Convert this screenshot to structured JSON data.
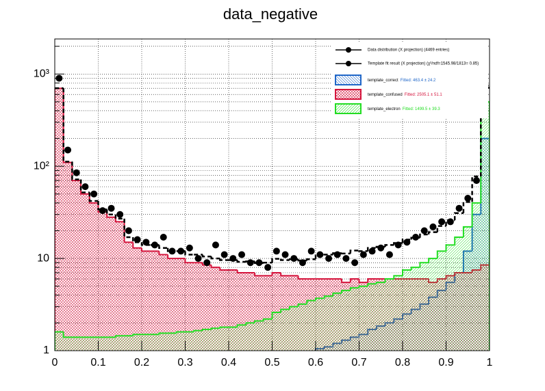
{
  "chart_data": {
    "type": "hist",
    "title": "data_negative",
    "log_y": true,
    "grid": true,
    "legend": "top-right",
    "xlim": [
      0,
      1
    ],
    "ylim": [
      1,
      2400
    ],
    "xticks": [
      0,
      0.1,
      0.2,
      0.3,
      0.4,
      0.5,
      0.6,
      0.7,
      0.8,
      0.9,
      1
    ],
    "yticks": [
      1,
      10,
      {
        "value": 100,
        "label": "10²"
      },
      {
        "value": 1000,
        "label": "10³"
      }
    ],
    "bins": [
      0,
      0.02,
      0.04,
      0.06,
      0.08,
      0.1,
      0.12,
      0.14,
      0.16,
      0.18,
      0.2,
      0.22,
      0.24,
      0.26,
      0.28,
      0.3,
      0.32,
      0.34,
      0.36,
      0.38,
      0.4,
      0.42,
      0.44,
      0.46,
      0.48,
      0.5,
      0.52,
      0.54,
      0.56,
      0.58,
      0.6,
      0.62,
      0.64,
      0.66,
      0.68,
      0.7,
      0.72,
      0.74,
      0.76,
      0.78,
      0.8,
      0.82,
      0.84,
      0.86,
      0.88,
      0.9,
      0.92,
      0.94,
      0.96,
      0.98,
      1
    ],
    "templates": [
      {
        "name": "template_correct",
        "fit_label": "Fitted: 463.4 ± 24.2",
        "color": "#1f66c8",
        "values": [
          0.3,
          0.3,
          0.3,
          0.3,
          0.3,
          0.3,
          0.3,
          0.3,
          0.3,
          0.3,
          0.3,
          0.3,
          0.3,
          0.3,
          0.3,
          0.3,
          0.3,
          0.3,
          0.3,
          0.3,
          0.3,
          0.3,
          0.3,
          0.3,
          0.3,
          0.3,
          0.3,
          0.3,
          0.3,
          0.3,
          1.05,
          1.1,
          1.2,
          1.3,
          1.4,
          1.5,
          1.7,
          1.85,
          2,
          2.2,
          2.5,
          2.8,
          3.2,
          3.8,
          4.5,
          5.5,
          7,
          12,
          30,
          200
        ]
      },
      {
        "name": "template_confused",
        "fit_label": "Fitted: 2505.1 ± 51.1",
        "color": "#d4143c",
        "values": [
          700,
          110,
          70,
          50,
          40,
          32,
          28,
          25,
          15,
          13,
          12,
          12,
          11,
          10,
          10,
          9,
          9,
          8.5,
          8,
          7.5,
          7.5,
          7,
          7,
          6.5,
          6.5,
          7,
          6.5,
          6.5,
          6,
          6,
          6,
          6,
          6,
          5.5,
          6,
          5.5,
          6,
          6,
          6,
          6,
          6,
          6,
          6,
          5.5,
          6,
          6.5,
          7,
          7,
          7.5,
          8.5
        ]
      },
      {
        "name": "template_electron",
        "fit_label": "Fitted: 1499.5 ± 39.3",
        "color": "#22dd22",
        "values": [
          1.6,
          1.4,
          1.4,
          1.4,
          1.4,
          1.4,
          1.4,
          1.45,
          1.45,
          1.5,
          1.5,
          1.5,
          1.55,
          1.55,
          1.6,
          1.6,
          1.65,
          1.7,
          1.75,
          1.8,
          1.8,
          1.9,
          2,
          2.1,
          2.2,
          2.6,
          2.8,
          3,
          3.2,
          3.5,
          3.7,
          3.9,
          4.2,
          4.5,
          4.8,
          5,
          5.3,
          5.5,
          6,
          6.5,
          7.5,
          8,
          9,
          10,
          12,
          14,
          17,
          22,
          40,
          500
        ]
      }
    ],
    "fit": {
      "name": "Template fit result (X projection) (χ²/ndf=1545.98/1813= 0.85)",
      "color": "#000000",
      "values": [
        702,
        112,
        72,
        52,
        42,
        34,
        30,
        27,
        17,
        15,
        14,
        14,
        13,
        12,
        12,
        11,
        11,
        10.5,
        10,
        9.6,
        9.6,
        9.2,
        9.3,
        8.9,
        9,
        9.9,
        9.6,
        9.8,
        9.5,
        9.8,
        10.8,
        11,
        11.4,
        11.3,
        12.2,
        12,
        13,
        13.4,
        14,
        14.7,
        16,
        16.8,
        18.2,
        19.3,
        22.5,
        26,
        31,
        41,
        77.5,
        708
      ]
    },
    "data": {
      "name": "Data distribution (X projection) (4469 entries)",
      "color": "#000000",
      "values": [
        900,
        150,
        85,
        60,
        50,
        33,
        35,
        30,
        20,
        16,
        15,
        14,
        17,
        12,
        12,
        13,
        10,
        9,
        14,
        11,
        10,
        11,
        9,
        9,
        8,
        12,
        11,
        10,
        9,
        12,
        11,
        10,
        11,
        10,
        9,
        11,
        12,
        13,
        11,
        14,
        15,
        17,
        20,
        22,
        25,
        25,
        35,
        45,
        70,
        750
      ]
    }
  }
}
